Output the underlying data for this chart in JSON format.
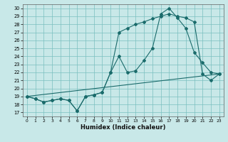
{
  "xlabel": "Humidex (Indice chaleur)",
  "x_ticks": [
    0,
    1,
    2,
    3,
    4,
    5,
    6,
    7,
    8,
    9,
    10,
    11,
    12,
    13,
    14,
    15,
    16,
    17,
    18,
    19,
    20,
    21,
    22,
    23
  ],
  "y_ticks": [
    17,
    18,
    19,
    20,
    21,
    22,
    23,
    24,
    25,
    26,
    27,
    28,
    29,
    30
  ],
  "ylim": [
    16.5,
    30.5
  ],
  "xlim": [
    -0.5,
    23.5
  ],
  "bg_color": "#c8e8e8",
  "line_color": "#1a6b6b",
  "grid_color": "#7abfbf",
  "line1_x": [
    0,
    1,
    2,
    3,
    4,
    5,
    6,
    7,
    8,
    9,
    10,
    11,
    12,
    13,
    14,
    15,
    16,
    17,
    18,
    19,
    20,
    21,
    22,
    23
  ],
  "line1_y": [
    19.0,
    18.7,
    18.3,
    18.5,
    18.7,
    18.5,
    17.2,
    19.0,
    19.2,
    19.5,
    22.0,
    24.0,
    22.0,
    22.2,
    23.5,
    25.0,
    29.3,
    30.0,
    28.8,
    27.5,
    24.5,
    23.2,
    22.0,
    21.8
  ],
  "line2_x": [
    0,
    1,
    2,
    3,
    4,
    5,
    6,
    7,
    8,
    9,
    10,
    11,
    12,
    13,
    14,
    15,
    16,
    17,
    18,
    19,
    20,
    21,
    22,
    23
  ],
  "line2_y": [
    19.0,
    18.7,
    18.3,
    18.5,
    18.7,
    18.5,
    17.2,
    19.0,
    19.2,
    19.5,
    22.0,
    27.0,
    27.5,
    28.0,
    28.3,
    28.7,
    29.0,
    29.3,
    29.0,
    28.8,
    28.3,
    21.8,
    21.0,
    21.8
  ],
  "line3_x": [
    0,
    23
  ],
  "line3_y": [
    19.0,
    21.8
  ]
}
